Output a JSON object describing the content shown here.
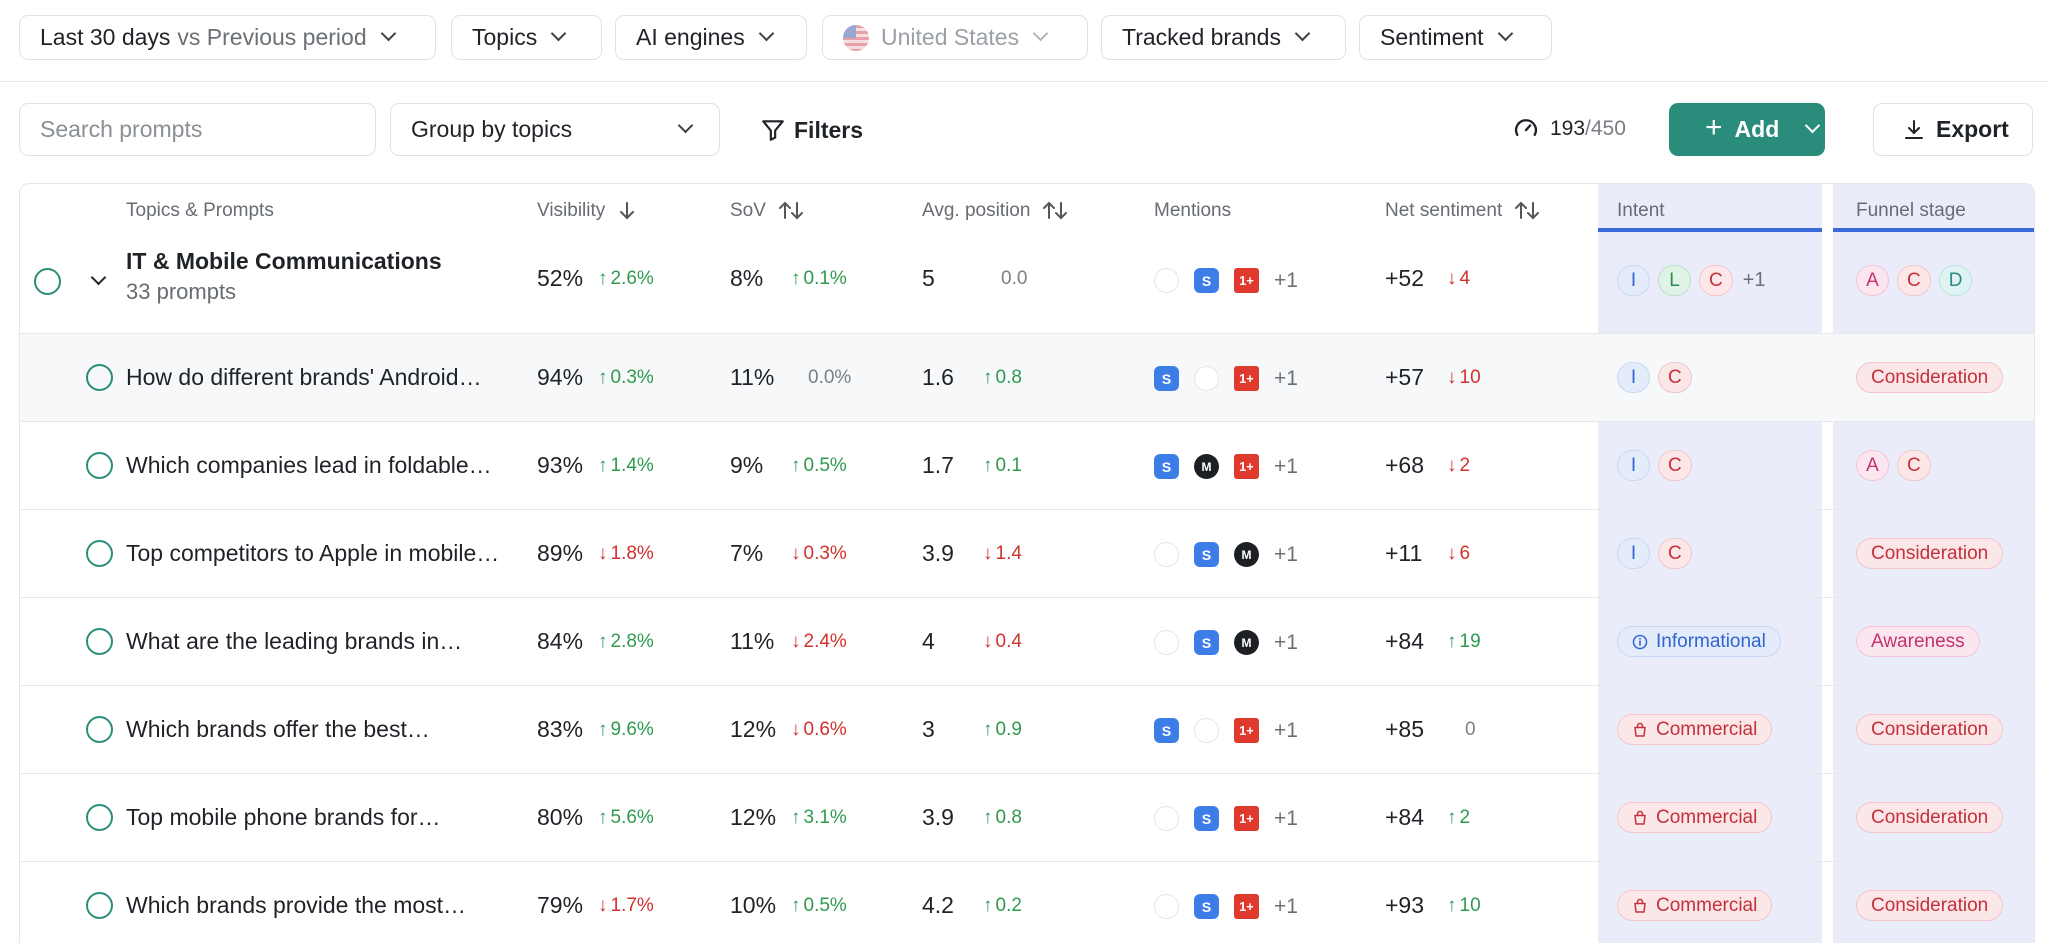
{
  "filterbar": {
    "date": {
      "label": "Last 30 days",
      "compare": "vs Previous period"
    },
    "topics": "Topics",
    "engines": "AI engines",
    "country": "United States",
    "brands": "Tracked brands",
    "sentiment": "Sentiment"
  },
  "toolbar": {
    "search_placeholder": "Search prompts",
    "group_by": "Group by topics",
    "filters": "Filters",
    "quota_used": "193",
    "quota_max": "/450",
    "add": "Add",
    "export": "Export"
  },
  "table": {
    "headers": {
      "prompts": "Topics & Prompts",
      "visibility": "Visibility",
      "sov": "SoV",
      "position": "Avg. position",
      "mentions": "Mentions",
      "sentiment": "Net sentiment",
      "intent": "Intent",
      "funnel": "Funnel stage"
    },
    "group": {
      "title": "IT & Mobile Communications",
      "subtitle": "33 prompts",
      "visibility": "52%",
      "visibility_delta": "2.6%",
      "sov": "8%",
      "sov_delta": "0.1%",
      "position": "5",
      "position_delta": "0.0",
      "mentions_more": "+1",
      "sentiment": "+52",
      "sentiment_delta": "4",
      "intent": [
        "I",
        "L",
        "C"
      ],
      "intent_more": "+1",
      "funnel": [
        "A",
        "C",
        "D"
      ]
    },
    "rows": [
      {
        "prompt": "How do different brands' Android…",
        "visibility": "94%",
        "vis_delta": "0.3%",
        "sov": "11%",
        "sov_delta": "0.0%",
        "position": "1.6",
        "pos_delta": "0.8",
        "more": "+1",
        "sentiment": "+57",
        "sent_delta": "10",
        "intent": [
          "I",
          "C"
        ],
        "funnel": "Consideration"
      },
      {
        "prompt": "Which companies lead in foldable…",
        "visibility": "93%",
        "vis_delta": "1.4%",
        "sov": "9%",
        "sov_delta": "0.5%",
        "position": "1.7",
        "pos_delta": "0.1",
        "more": "+1",
        "sentiment": "+68",
        "sent_delta": "2",
        "intent": [
          "I",
          "C"
        ],
        "funnel_letters": [
          "A",
          "C"
        ]
      },
      {
        "prompt": "Top competitors to Apple in mobile…",
        "visibility": "89%",
        "vis_delta": "1.8%",
        "sov": "7%",
        "sov_delta": "0.3%",
        "position": "3.9",
        "pos_delta": "1.4",
        "more": "+1",
        "sentiment": "+11",
        "sent_delta": "6",
        "intent": [
          "I",
          "C"
        ],
        "funnel": "Consideration"
      },
      {
        "prompt": "What are the leading brands in…",
        "visibility": "84%",
        "vis_delta": "2.8%",
        "sov": "11%",
        "sov_delta": "2.4%",
        "position": "4",
        "pos_delta": "0.4",
        "more": "+1",
        "sentiment": "+84",
        "sent_delta": "19",
        "intent_word": "Informational",
        "funnel": "Awareness"
      },
      {
        "prompt": "Which brands offer the best…",
        "visibility": "83%",
        "vis_delta": "9.6%",
        "sov": "12%",
        "sov_delta": "0.6%",
        "position": "3",
        "pos_delta": "0.9",
        "more": "+1",
        "sentiment": "+85",
        "sent_delta": "0",
        "intent_word": "Commercial",
        "funnel": "Consideration"
      },
      {
        "prompt": "Top mobile phone brands for…",
        "visibility": "80%",
        "vis_delta": "5.6%",
        "sov": "12%",
        "sov_delta": "3.1%",
        "position": "3.9",
        "pos_delta": "0.8",
        "more": "+1",
        "sentiment": "+84",
        "sent_delta": "2",
        "intent_word": "Commercial",
        "funnel": "Consideration"
      },
      {
        "prompt": "Which brands provide the most…",
        "visibility": "79%",
        "vis_delta": "1.7%",
        "sov": "10%",
        "sov_delta": "0.5%",
        "position": "4.2",
        "pos_delta": "0.2",
        "more": "+1",
        "sentiment": "+93",
        "sent_delta": "10",
        "intent_word": "Commercial",
        "funnel": "Consideration"
      }
    ]
  }
}
